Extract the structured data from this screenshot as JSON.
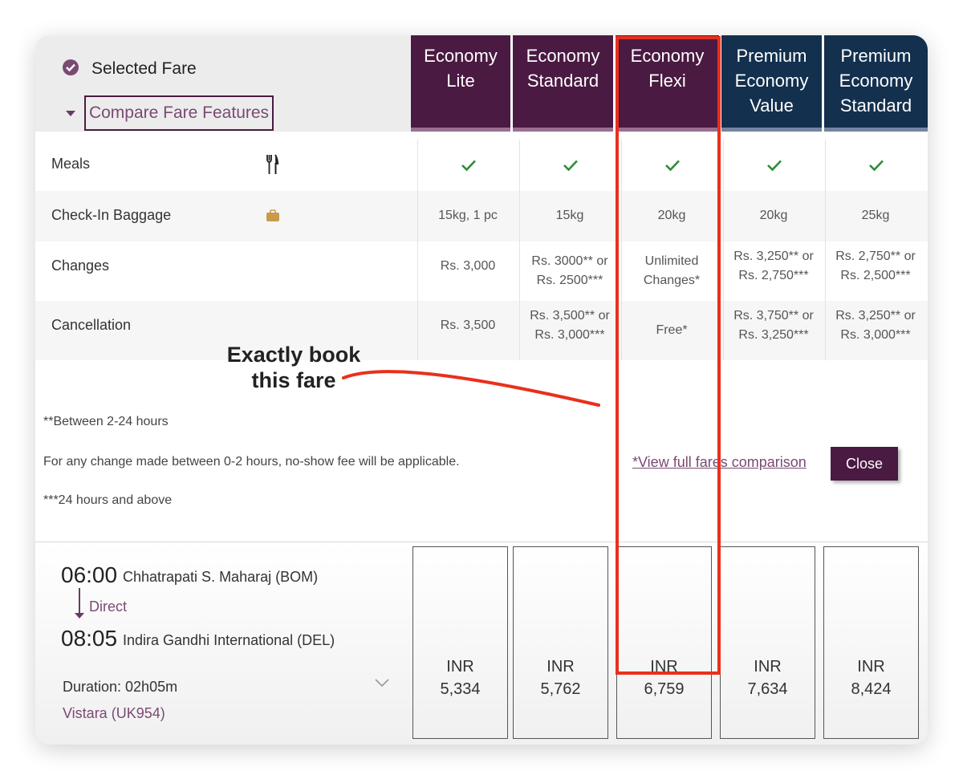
{
  "header": {
    "selected_label": "Selected Fare",
    "compare_label": "Compare Fare Features"
  },
  "fares": [
    {
      "name_lines": [
        "Economy",
        "Lite"
      ],
      "group": "economy"
    },
    {
      "name_lines": [
        "Economy",
        "Standard"
      ],
      "group": "economy"
    },
    {
      "name_lines": [
        "Economy",
        "Flexi"
      ],
      "group": "economy"
    },
    {
      "name_lines": [
        "Premium",
        "Economy",
        "Value"
      ],
      "group": "premium"
    },
    {
      "name_lines": [
        "Premium",
        "Economy",
        "Standard"
      ],
      "group": "premium"
    }
  ],
  "features": {
    "meals": {
      "label": "Meals",
      "icon": "fork-knife-icon",
      "included": [
        true,
        true,
        true,
        true,
        true
      ]
    },
    "baggage": {
      "label": "Check-In Baggage",
      "icon": "suitcase-icon",
      "values": [
        "15kg, 1 pc",
        "15kg",
        "20kg",
        "20kg",
        "25kg"
      ]
    },
    "changes": {
      "label": "Changes",
      "values": [
        [
          "Rs. 3,000"
        ],
        [
          "Rs. 3000** or",
          "Rs. 2500***"
        ],
        [
          "Unlimited",
          "Changes*"
        ],
        [
          "Rs. 3,250** or",
          "Rs. 2,750***"
        ],
        [
          "Rs. 2,750** or",
          "Rs. 2,500***"
        ]
      ]
    },
    "cancellation": {
      "label": "Cancellation",
      "values": [
        [
          "Rs. 3,500"
        ],
        [
          "Rs. 3,500** or",
          "Rs. 3,000***"
        ],
        [
          "Free*"
        ],
        [
          "Rs. 3,750** or",
          "Rs. 3,250***"
        ],
        [
          "Rs. 3,250** or",
          "Rs. 3,000***"
        ]
      ]
    }
  },
  "notes": {
    "note1": "**Between 2-24 hours",
    "note2": "For any change made between 0-2 hours, no-show fee will be applicable.",
    "note3": "***24 hours and above"
  },
  "links": {
    "full_comparison": "*View full fares comparison",
    "close": "Close"
  },
  "flight": {
    "depart_time": "06:00",
    "depart_airport": "Chhatrapati S. Maharaj (BOM)",
    "stops": "Direct",
    "arrive_time": "08:05",
    "arrive_airport": "Indira Gandhi International (DEL)",
    "duration": "Duration:  02h05m",
    "airline": "Vistara (UK954)"
  },
  "prices": [
    {
      "currency": "INR",
      "amount": "5,334"
    },
    {
      "currency": "INR",
      "amount": "5,762"
    },
    {
      "currency": "INR",
      "amount": "6,759"
    },
    {
      "currency": "INR",
      "amount": "7,634"
    },
    {
      "currency": "INR",
      "amount": "8,424"
    }
  ],
  "annotation": {
    "text_line1": "Exactly book",
    "text_line2": "this fare",
    "color": "#e8301c"
  },
  "colors": {
    "economy_header": "#4a1a42",
    "premium_header": "#13304e",
    "accent": "#7a4a72",
    "check": "#2e8b3a"
  }
}
